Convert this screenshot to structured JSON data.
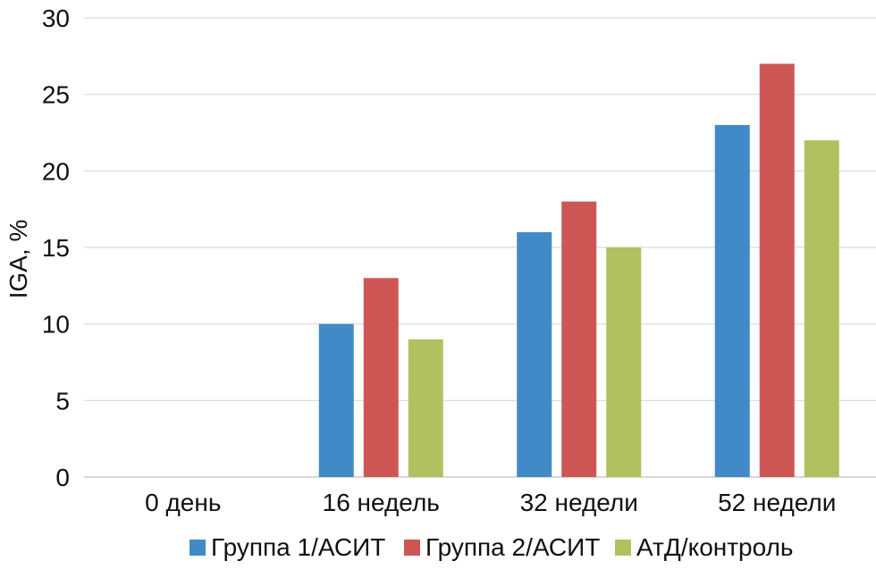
{
  "chart_data": {
    "type": "bar",
    "title": "",
    "xlabel": "",
    "ylabel": "IGA, %",
    "ylim": [
      0,
      30
    ],
    "yticks": [
      0,
      5,
      10,
      15,
      20,
      25,
      30
    ],
    "grid": true,
    "legend_position": "bottom",
    "categories": [
      "0 день",
      "16 недель",
      "32 недели",
      "52 недели"
    ],
    "series": [
      {
        "name": "Группа 1/АСИТ",
        "color": "#4189C7",
        "values": [
          0,
          10,
          16,
          23
        ]
      },
      {
        "name": "Группа 2/АСИТ",
        "color": "#CD5654",
        "values": [
          0,
          13,
          18,
          27
        ]
      },
      {
        "name": "АтД/контроль",
        "color": "#B2C15F",
        "values": [
          0,
          9,
          15,
          22
        ]
      }
    ]
  }
}
